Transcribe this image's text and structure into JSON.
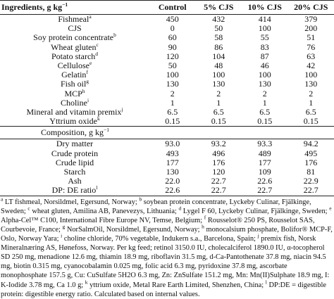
{
  "table": {
    "header": {
      "label": "Ingredients, g kg",
      "exponent": "−1",
      "columns": [
        "Control",
        "5% CJS",
        "10% CJS",
        "20% CJS"
      ]
    },
    "rows": [
      {
        "label": "Fishmeal",
        "note": "a",
        "values": [
          "450",
          "432",
          "414",
          "379"
        ]
      },
      {
        "label": "CJS",
        "note": null,
        "values": [
          "0",
          "50",
          "100",
          "200"
        ]
      },
      {
        "label": "Soy protein concentrate",
        "note": "b",
        "values": [
          "60",
          "58",
          "55",
          "51"
        ]
      },
      {
        "label": "Wheat gluten",
        "note": "c",
        "values": [
          "90",
          "86",
          "83",
          "76"
        ]
      },
      {
        "label": "Potato starch",
        "note": "d",
        "values": [
          "120",
          "104",
          "87",
          "63"
        ]
      },
      {
        "label": "Cellulose",
        "note": "e",
        "values": [
          "50",
          "48",
          "46",
          "42"
        ]
      },
      {
        "label": "Gelatin",
        "note": "f",
        "values": [
          "100",
          "100",
          "100",
          "100"
        ]
      },
      {
        "label": "Fish oil",
        "note": "g",
        "values": [
          "130",
          "130",
          "130",
          "130"
        ]
      },
      {
        "label": "MCP",
        "note": "h",
        "values": [
          "2",
          "2",
          "2",
          "2"
        ]
      },
      {
        "label": "Choline",
        "note": "i",
        "values": [
          "1",
          "1",
          "1",
          "1"
        ]
      },
      {
        "label": "Mineral and vitamin premix",
        "note": "j",
        "values": [
          "6.5",
          "6.5",
          "6.5",
          "6.5"
        ]
      },
      {
        "label": "Yttrium oxide",
        "note": "k",
        "values": [
          "0.15",
          "0.15",
          "0.15",
          "0.15"
        ]
      }
    ],
    "section": {
      "label": "Composition, g kg",
      "exponent": "−1"
    },
    "composition_rows": [
      {
        "label": "Dry matter",
        "note": null,
        "values": [
          "93.0",
          "93.2",
          "93.3",
          "94.2"
        ]
      },
      {
        "label": "Crude protein",
        "note": null,
        "values": [
          "493",
          "496",
          "489",
          "495"
        ]
      },
      {
        "label": "Crude lipid",
        "note": null,
        "values": [
          "177",
          "176",
          "177",
          "176"
        ]
      },
      {
        "label": "Starch",
        "note": null,
        "values": [
          "130",
          "120",
          "109",
          "81"
        ]
      },
      {
        "label": "Ash",
        "note": null,
        "values": [
          "22.0",
          "22.7",
          "22.6",
          "22.9"
        ]
      },
      {
        "label": "DP: DE ratio",
        "note": "l",
        "values": [
          "22.6",
          "22.7",
          "22.7",
          "22.7"
        ]
      }
    ]
  },
  "footnotes": [
    {
      "mark": "a",
      "text": "LT fishmeal, Norsildmel, Egersund, Norway;"
    },
    {
      "mark": "b",
      "text": "soybean protein concentrate, Lyckeby Culinar, Fjälkinge, Sweden;"
    },
    {
      "mark": "c",
      "text": "wheat gluten, Amilina AB, Panevezys, Lithuania;"
    },
    {
      "mark": "d",
      "text": "Lygel F 60, Lyckeby Culinar, Fjälkinge, Sweden;"
    },
    {
      "mark": "e",
      "text": "Alpha-Cel™ C100, International Fibre Europe NV, Temse, Belgium;"
    },
    {
      "mark": "f",
      "text": "Rousselot® 250 PS, Rousselot SAS, Courbevoie, France;"
    },
    {
      "mark": "g",
      "text": "NorSalmOil, Norsildmel, Egersund, Norway;"
    },
    {
      "mark": "h",
      "text": "monocalsium phosphate, Bolifor® MCP-F, Oslo, Norway Yara;"
    },
    {
      "mark": "i",
      "text": "choline chloride, 70% vegetable, Indukern s.a., Barcelona, Spain;"
    },
    {
      "mark": "j",
      "text": "premix fish, Norsk Mineralnæring AS, Hønefoss, Norway. Per kg feed; retinol 3150.0 IU, cholecalciferol 1890.0 IU, α-tocopherol SD 250 mg, menadione 12.6 mg, thiamin 18.9 mg, riboflavin 31.5 mg, d-Ca-Pantothenate 37.8 mg, niacin 94.5 mg, biotin 0.315 mg, cyanocobalamin 0.025 mg, folic acid 6.3 mg, pyridoxine 37.8 mg, ascorbate monophosphate 157.5 g, Cu: CuSulfate 5H2O 6.3 mg, Zn: ZnSulfate 151.2 mg, Mn: Mn(II)Sulphate 18.9 mg, I: K-Iodide 3.78 mg, Ca 1.0 g;"
    },
    {
      "mark": "k",
      "text": "yttrium oxide, Metal Rare Earth Limited, Shenzhen, China;"
    },
    {
      "mark": "l",
      "text": "DP:DE = digestible protein: digestible energy ratio. Calculated based on internal values."
    }
  ]
}
